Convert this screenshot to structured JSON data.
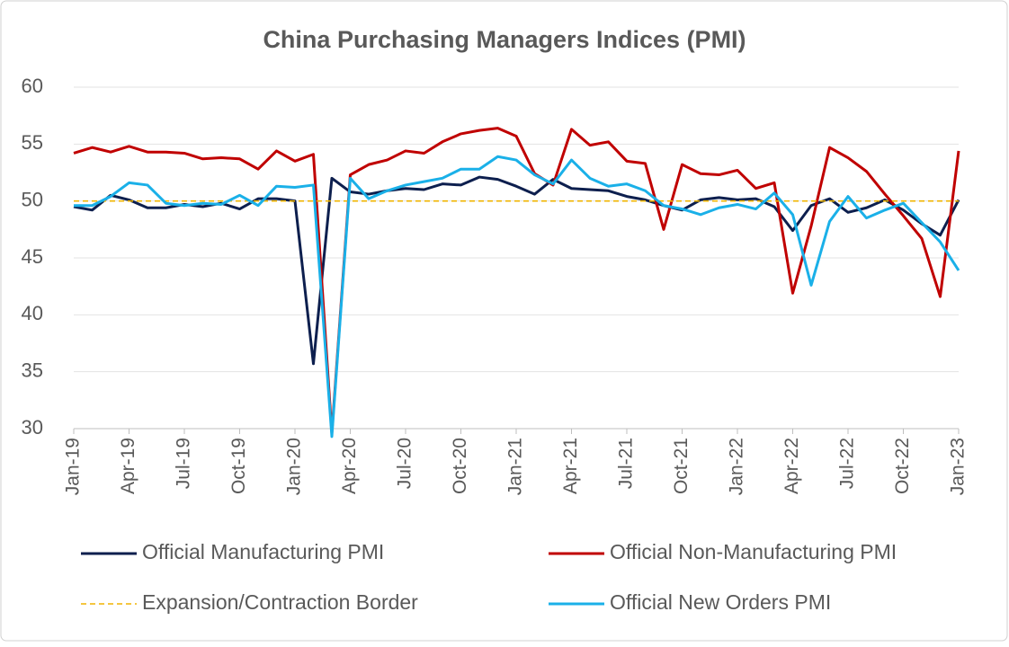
{
  "chart_data": {
    "type": "line",
    "title": "China Purchasing Managers Indices (PMI)",
    "categories": [
      "Jan-19",
      null,
      null,
      "Apr-19",
      null,
      null,
      "Jul-19",
      null,
      null,
      "Oct-19",
      null,
      null,
      "Jan-20",
      null,
      null,
      "Apr-20",
      null,
      null,
      "Jul-20",
      null,
      null,
      "Oct-20",
      null,
      null,
      "Jan-21",
      null,
      null,
      "Apr-21",
      null,
      null,
      "Jul-21",
      null,
      null,
      "Oct-21",
      null,
      null,
      "Jan-22",
      null,
      null,
      "Apr-22",
      null,
      null,
      "Jul-22",
      null,
      null,
      "Oct-22",
      null,
      null,
      "Jan-23"
    ],
    "series": [
      {
        "name": "Official Manufacturing PMI",
        "color": "#0d1f4e",
        "dash": false,
        "values": [
          49.5,
          49.2,
          50.5,
          50.1,
          49.4,
          49.4,
          49.7,
          49.5,
          49.8,
          49.3,
          50.2,
          50.2,
          50.0,
          35.7,
          52.0,
          50.8,
          50.6,
          50.9,
          51.1,
          51.0,
          51.5,
          51.4,
          52.1,
          51.9,
          51.3,
          50.6,
          51.9,
          51.1,
          51.0,
          50.9,
          50.4,
          50.1,
          49.6,
          49.2,
          50.1,
          50.3,
          50.1,
          50.2,
          49.5,
          47.4,
          49.6,
          50.2,
          49.0,
          49.4,
          50.1,
          49.2,
          48.0,
          47.0,
          50.1
        ]
      },
      {
        "name": "Official Non-Manufacturing PMI",
        "color": "#c00000",
        "dash": false,
        "values": [
          54.2,
          54.7,
          54.3,
          54.8,
          54.3,
          54.3,
          54.2,
          53.7,
          53.8,
          53.7,
          52.8,
          54.4,
          53.5,
          54.1,
          29.6,
          52.3,
          53.2,
          53.6,
          54.4,
          54.2,
          55.2,
          55.9,
          56.2,
          56.4,
          55.7,
          52.4,
          51.4,
          56.3,
          54.9,
          55.2,
          53.5,
          53.3,
          47.5,
          53.2,
          52.4,
          52.3,
          52.7,
          51.1,
          51.6,
          41.9,
          47.8,
          54.7,
          53.8,
          52.6,
          50.6,
          48.7,
          46.7,
          41.6,
          54.4
        ]
      },
      {
        "name": "Expansion/Contraction Border",
        "color": "#f0b400",
        "dash": true,
        "values": [
          50,
          50,
          50,
          50,
          50,
          50,
          50,
          50,
          50,
          50,
          50,
          50,
          50,
          50,
          50,
          50,
          50,
          50,
          50,
          50,
          50,
          50,
          50,
          50,
          50,
          50,
          50,
          50,
          50,
          50,
          50,
          50,
          50,
          50,
          50,
          50,
          50,
          50,
          50,
          50,
          50,
          50,
          50,
          50,
          50,
          50,
          50,
          50,
          50
        ]
      },
      {
        "name": "Official New Orders PMI",
        "color": "#1ab0e8",
        "dash": false,
        "values": [
          49.6,
          49.6,
          50.4,
          51.6,
          51.4,
          49.8,
          49.6,
          49.8,
          49.7,
          50.5,
          49.6,
          51.3,
          51.2,
          51.4,
          29.3,
          52.0,
          50.2,
          50.9,
          51.4,
          51.7,
          52.0,
          52.8,
          52.8,
          53.9,
          53.6,
          52.3,
          51.5,
          53.6,
          52.0,
          51.3,
          51.5,
          50.9,
          49.6,
          49.3,
          48.8,
          49.4,
          49.7,
          49.3,
          50.7,
          48.8,
          42.6,
          48.2,
          50.4,
          48.5,
          49.2,
          49.8,
          48.1,
          46.4,
          43.9
        ]
      }
    ],
    "ylim": [
      30,
      60
    ],
    "yticks": [
      30,
      35,
      40,
      45,
      50,
      55,
      60
    ],
    "grid": true
  }
}
